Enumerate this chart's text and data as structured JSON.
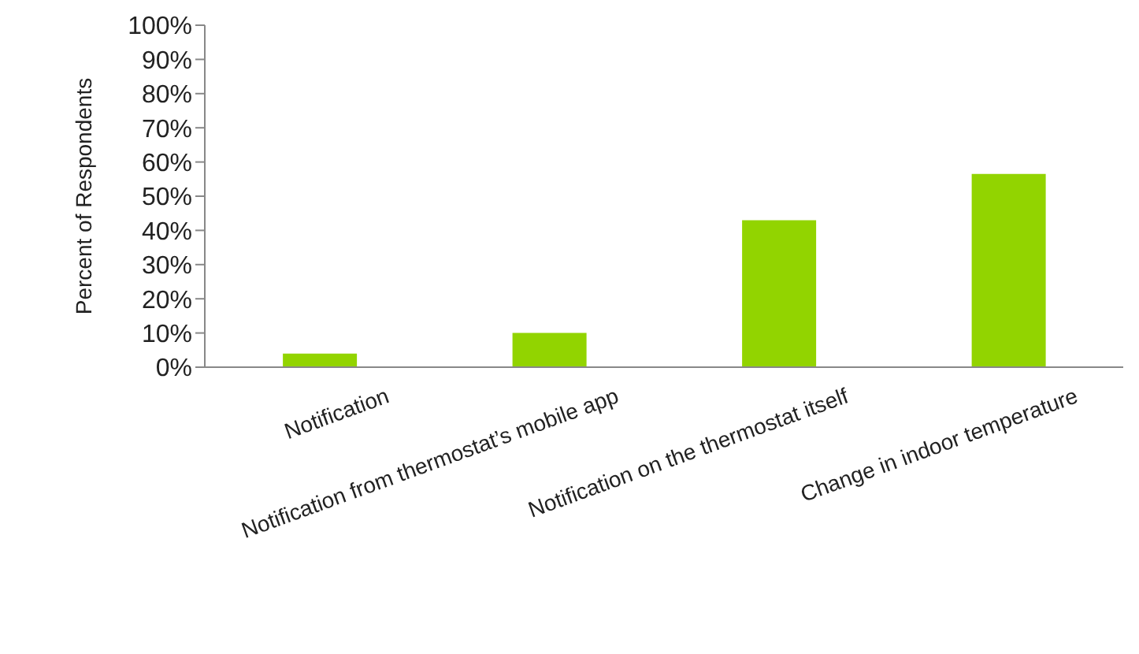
{
  "chart_data": {
    "type": "bar",
    "ylabel": "Percent of Respondents",
    "categories": [
      "Notification",
      "Notification from thermostat’s mobile app",
      "Notification on the thermostat itself",
      "Change in indoor temperature"
    ],
    "values": [
      4,
      10,
      43,
      56.5
    ],
    "color": "#92d400",
    "ylim": [
      0,
      100
    ],
    "yticks": [
      {
        "value": 0,
        "label": "0%"
      },
      {
        "value": 10,
        "label": "10%"
      },
      {
        "value": 20,
        "label": "20%"
      },
      {
        "value": 30,
        "label": "30%"
      },
      {
        "value": 40,
        "label": "40%"
      },
      {
        "value": 50,
        "label": "50%"
      },
      {
        "value": 60,
        "label": "60%"
      },
      {
        "value": 70,
        "label": "70%"
      },
      {
        "value": 80,
        "label": "80%"
      },
      {
        "value": 90,
        "label": "90%"
      },
      {
        "value": 100,
        "label": "100%"
      }
    ],
    "grid": false,
    "legend": false
  }
}
